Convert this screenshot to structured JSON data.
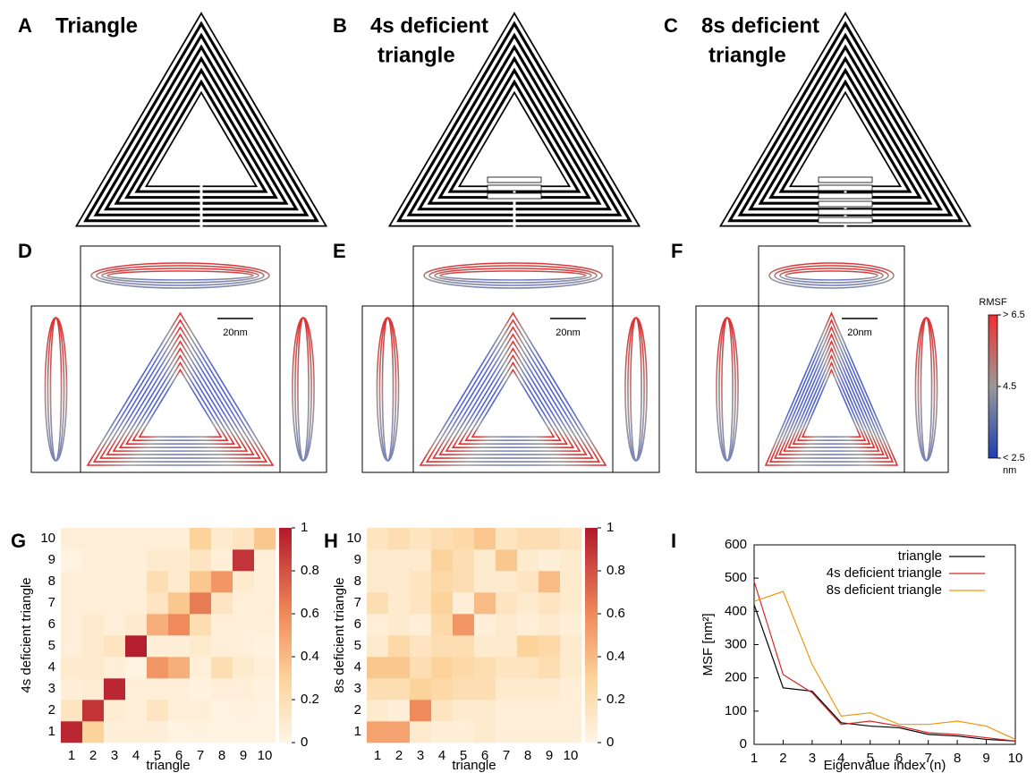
{
  "panels": [
    {
      "label": "A",
      "title": [
        "Triangle"
      ]
    },
    {
      "label": "B",
      "title": [
        "4s deficient",
        "triangle"
      ]
    },
    {
      "label": "C",
      "title": [
        "8s deficient",
        "triangle"
      ]
    },
    {
      "label": "D",
      "scale_bar": "20nm"
    },
    {
      "label": "E",
      "scale_bar": "20nm"
    },
    {
      "label": "F",
      "scale_bar": "20nm"
    }
  ],
  "rmsf_colorbar": {
    "title": "RMSF",
    "labels": [
      "> 6.5",
      "4.5",
      "< 2.5"
    ],
    "unit": "nm"
  },
  "chart_data": [
    {
      "type": "heatmap",
      "panel": "G",
      "xlabel": "triangle",
      "ylabel": "4s deficient triangle",
      "x": [
        1,
        2,
        3,
        4,
        5,
        6,
        7,
        8,
        9,
        10
      ],
      "y": [
        1,
        2,
        3,
        4,
        5,
        6,
        7,
        8,
        9,
        10
      ],
      "values": [
        [
          0.95,
          0.3,
          0.05,
          0.05,
          0.05,
          0.02,
          0.03,
          0.02,
          0.02,
          0.02
        ],
        [
          0.15,
          0.9,
          0.08,
          0.05,
          0.15,
          0.05,
          0.05,
          0.02,
          0.03,
          0.02
        ],
        [
          0.05,
          0.08,
          0.95,
          0.05,
          0.05,
          0.05,
          0.03,
          0.05,
          0.05,
          0.03
        ],
        [
          0.1,
          0.1,
          0.05,
          0.02,
          0.55,
          0.45,
          0.05,
          0.2,
          0.1,
          0.05
        ],
        [
          0.05,
          0.1,
          0.15,
          0.98,
          0.05,
          0.05,
          0.1,
          0.05,
          0.05,
          0.03
        ],
        [
          0.05,
          0.1,
          0.05,
          0.1,
          0.45,
          0.6,
          0.2,
          0.05,
          0.05,
          0.05
        ],
        [
          0.05,
          0.05,
          0.05,
          0.05,
          0.15,
          0.35,
          0.65,
          0.15,
          0.05,
          0.05
        ],
        [
          0.05,
          0.05,
          0.05,
          0.05,
          0.2,
          0.1,
          0.35,
          0.55,
          0.1,
          0.05
        ],
        [
          0.02,
          0.05,
          0.05,
          0.05,
          0.1,
          0.1,
          0.15,
          0.05,
          0.9,
          0.05
        ],
        [
          0.05,
          0.05,
          0.05,
          0.05,
          0.05,
          0.05,
          0.3,
          0.1,
          0.15,
          0.35
        ]
      ],
      "clim": [
        0,
        1
      ],
      "cticks": [
        0,
        0.2,
        0.4,
        0.6,
        0.8,
        1
      ]
    },
    {
      "type": "heatmap",
      "panel": "H",
      "xlabel": "triangle",
      "ylabel": "8s deficient triangle",
      "x": [
        1,
        2,
        3,
        4,
        5,
        6,
        7,
        8,
        9,
        10
      ],
      "y": [
        1,
        2,
        3,
        4,
        5,
        6,
        7,
        8,
        9,
        10
      ],
      "values": [
        [
          0.5,
          0.5,
          0.1,
          0.05,
          0.05,
          0.1,
          0.05,
          0.05,
          0.05,
          0.05
        ],
        [
          0.1,
          0.05,
          0.6,
          0.15,
          0.1,
          0.1,
          0.05,
          0.05,
          0.05,
          0.05
        ],
        [
          0.2,
          0.2,
          0.3,
          0.25,
          0.2,
          0.2,
          0.1,
          0.1,
          0.1,
          0.05
        ],
        [
          0.35,
          0.35,
          0.2,
          0.3,
          0.25,
          0.2,
          0.15,
          0.15,
          0.2,
          0.1
        ],
        [
          0.1,
          0.25,
          0.15,
          0.2,
          0.2,
          0.1,
          0.1,
          0.3,
          0.25,
          0.1
        ],
        [
          0.05,
          0.1,
          0.05,
          0.25,
          0.55,
          0.05,
          0.1,
          0.05,
          0.1,
          0.05
        ],
        [
          0.2,
          0.1,
          0.15,
          0.3,
          0.05,
          0.4,
          0.15,
          0.1,
          0.15,
          0.1
        ],
        [
          0.1,
          0.1,
          0.15,
          0.25,
          0.2,
          0.1,
          0.1,
          0.15,
          0.4,
          0.1
        ],
        [
          0.1,
          0.1,
          0.1,
          0.3,
          0.2,
          0.1,
          0.35,
          0.1,
          0.05,
          0.1
        ],
        [
          0.15,
          0.2,
          0.15,
          0.2,
          0.25,
          0.35,
          0.15,
          0.2,
          0.2,
          0.15
        ]
      ],
      "clim": [
        0,
        1
      ],
      "cticks": [
        0,
        0.2,
        0.4,
        0.6,
        0.8,
        1
      ]
    },
    {
      "type": "line",
      "panel": "I",
      "xlabel": "Eigenvalue index (n)",
      "ylabel": "MSF  [nm²]",
      "x": [
        1,
        2,
        3,
        4,
        5,
        6,
        7,
        8,
        9,
        10
      ],
      "series": [
        {
          "name": "triangle",
          "color": "#000000",
          "values": [
            420,
            170,
            160,
            65,
            55,
            50,
            30,
            25,
            15,
            10
          ]
        },
        {
          "name": "4s deficient triangle",
          "color": "#d62728",
          "values": [
            490,
            210,
            155,
            60,
            70,
            55,
            35,
            30,
            20,
            10
          ]
        },
        {
          "name": "8s deficient triangle",
          "color": "#f0960a",
          "values": [
            430,
            460,
            240,
            85,
            95,
            60,
            60,
            70,
            55,
            15
          ]
        }
      ],
      "xlim": [
        1,
        10
      ],
      "xticks": [
        1,
        2,
        3,
        4,
        5,
        6,
        7,
        8,
        9,
        10
      ],
      "ylim": [
        0,
        600
      ],
      "yticks": [
        0,
        100,
        200,
        300,
        400,
        500,
        600
      ],
      "legend": "upper right"
    }
  ]
}
